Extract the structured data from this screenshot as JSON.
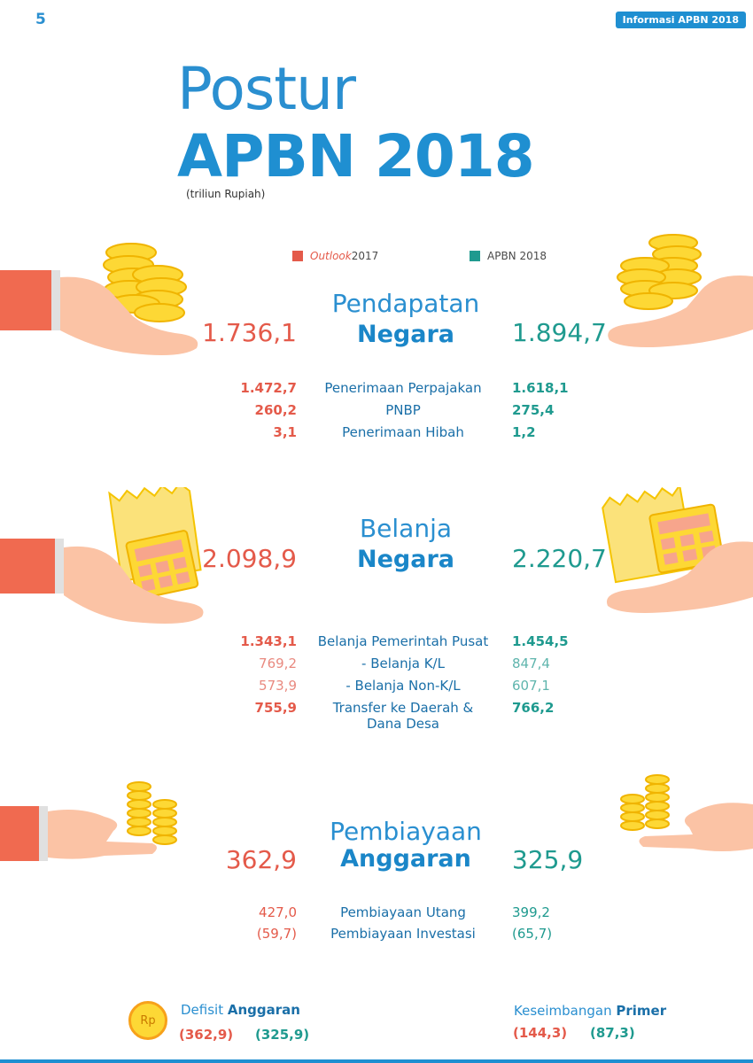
{
  "page_number": "5",
  "header_badge": "Informasi APBN 2018",
  "title": {
    "line1": "Postur",
    "line2": "APBN 2018",
    "unit": "(triliun Rupiah)"
  },
  "legend": {
    "outlook": {
      "label_italic": "Outlook",
      "label_rest": " 2017",
      "color": "#e45a4a"
    },
    "apbn": {
      "label": "APBN 2018",
      "color": "#1f9a8f"
    }
  },
  "pendapatan": {
    "title_light": "Pendapatan",
    "title_bold": "Negara",
    "outlook": "1.736,1",
    "apbn": "1.894,7",
    "rows": [
      {
        "outlook": "1.472,7",
        "label": "Penerimaan Perpajakan",
        "apbn": "1.618,1"
      },
      {
        "outlook": "260,2",
        "label": "PNBP",
        "apbn": "275,4"
      },
      {
        "outlook": "3,1",
        "label": "Penerimaan Hibah",
        "apbn": "1,2"
      }
    ]
  },
  "belanja": {
    "title_light": "Belanja",
    "title_bold": "Negara",
    "outlook": "2.098,9",
    "apbn": "2.220,7",
    "rows": [
      {
        "outlook": "1.343,1",
        "label": "Belanja Pemerintah Pusat",
        "apbn": "1.454,5"
      },
      {
        "outlook": "769,2",
        "label": "- Belanja K/L",
        "apbn": "847,4"
      },
      {
        "outlook": "573,9",
        "label": "- Belanja Non-K/L",
        "apbn": "607,1"
      },
      {
        "outlook": "755,9",
        "label": "Transfer ke Daerah &",
        "label2": "Dana Desa",
        "apbn": "766,2"
      }
    ]
  },
  "pembiayaan": {
    "title_light": "Pembiayaan",
    "title_bold": "Anggaran",
    "outlook": "362,9",
    "apbn": "325,9",
    "rows": [
      {
        "outlook": "427,0",
        "label": "Pembiayaan Utang",
        "apbn": "399,2"
      },
      {
        "outlook": "(59,7)",
        "label": "Pembiayaan Investasi",
        "apbn": "(65,7)"
      }
    ]
  },
  "defisit": {
    "coin_label": "Rp",
    "label_light": "Defisit ",
    "label_bold": "Anggaran",
    "outlook": "(362,9)",
    "apbn": "(325,9)"
  },
  "keseimbangan": {
    "label_light": "Keseimbangan ",
    "label_bold": "Primer",
    "outlook": "(144,3)",
    "apbn": "(87,3)"
  }
}
